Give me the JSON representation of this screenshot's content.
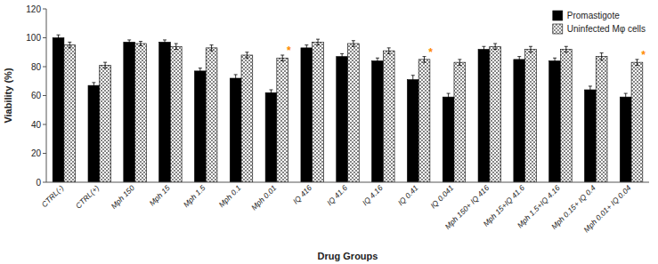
{
  "chart_data": {
    "type": "bar",
    "xlabel": "Drug Groups",
    "ylabel": "Viability (%)",
    "categories": [
      "CTRL(-)",
      "CTRL(+)",
      "Mph 150",
      "Mph 15",
      "Mph 1.5",
      "Mph 0.1",
      "Mph 0.01",
      "IQ 416",
      "IQ 41.6",
      "IQ 4.16",
      "IQ 0.41",
      "IQ 0.041",
      "Mph 150+ IQ 416",
      "Mph 15+IQ 41.6",
      "Mph 1.5+IQ 4.16",
      "Mph 0.15+ IQ 0.4",
      "Mph 0.01+ IQ 0.04"
    ],
    "series": [
      {
        "name": "Promastigote",
        "color": "#000000",
        "values": [
          100,
          67,
          97,
          97,
          77,
          72,
          62,
          93,
          87,
          84,
          71,
          59,
          92,
          85,
          84,
          64,
          59
        ],
        "errors": [
          2,
          2,
          1.5,
          1.5,
          2,
          2.5,
          2,
          2,
          2,
          2,
          3,
          2.5,
          2,
          2,
          2,
          2.5,
          2.5
        ]
      },
      {
        "name": "Uninfected Mφ cells",
        "color": "#ffffff",
        "values": [
          95,
          81,
          96,
          94,
          93,
          88,
          86,
          97,
          96,
          91,
          85,
          83,
          94,
          92,
          92,
          87,
          83
        ],
        "errors": [
          2,
          2,
          1.5,
          2,
          2,
          2,
          2,
          2,
          2,
          2,
          2,
          2,
          2,
          2,
          2,
          2.5,
          2
        ]
      }
    ],
    "annotations": [
      {
        "text": "*",
        "category": "Mph 0.01",
        "color": "#ff8c00"
      },
      {
        "text": "*",
        "category": "IQ 0.41",
        "color": "#ff8c00"
      },
      {
        "text": "*",
        "category": "Mph 0.01+ IQ 0.04",
        "color": "#ff8c00"
      }
    ],
    "ylim": [
      0,
      120
    ],
    "yticks": [
      0,
      20,
      40,
      60,
      80,
      100,
      120
    ],
    "grid": false,
    "legend": "upper right"
  }
}
